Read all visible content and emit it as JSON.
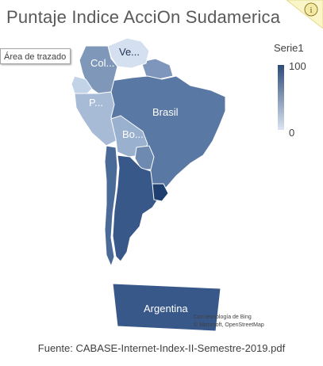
{
  "title": "Puntaje Indice AcciOn Sudamerica",
  "tooltip": "Área de trazado",
  "legend": {
    "title": "Serie1",
    "max": "100",
    "min": "0",
    "color_high": "#2e4a78",
    "color_low": "#dbe5f2"
  },
  "labels": {
    "colombia": "Col...",
    "venezuela": "Ve...",
    "peru": "P...",
    "brasil": "Brasil",
    "bolivia": "Bo...",
    "argentina": "Argentina"
  },
  "attribution": {
    "line1": "Con tecnología de Bing",
    "line2": "© Microsoft, OpenStreetMap"
  },
  "source": "Fuente: CABASE-Internet-Index-II-Semestre-2019.pdf",
  "icons": {
    "info": "info-icon"
  },
  "colors": {
    "venezuela": "#d4e0f0",
    "colombia": "#7f98ba",
    "ecuador": "#c2d3e8",
    "peru": "#a7bbd6",
    "brasil": "#5978a3",
    "bolivia": "#9ab0cf",
    "chile": "#4a6a97",
    "paraguay": "#6f8ab0",
    "argentina": "#39588a",
    "uruguay": "#1f3f70",
    "guyana": "#7e96bb"
  }
}
